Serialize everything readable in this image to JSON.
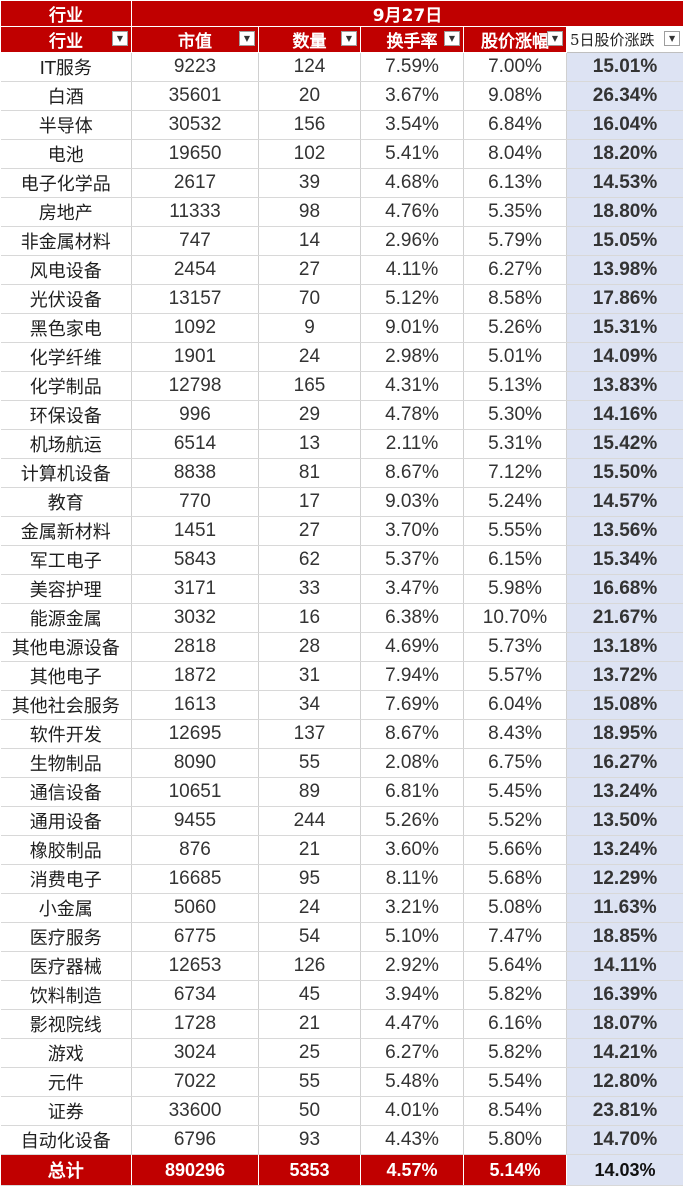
{
  "header": {
    "top_left": "行业",
    "date": "9月27日",
    "columns": [
      "行业",
      "市值",
      "数量",
      "换手率",
      "股价涨幅",
      "5日股价涨跌"
    ],
    "filter_icon": "dropdown-arrow-icon"
  },
  "rows": [
    [
      "IT服务",
      "9223",
      "124",
      "7.59%",
      "7.00%",
      "15.01%"
    ],
    [
      "白酒",
      "35601",
      "20",
      "3.67%",
      "9.08%",
      "26.34%"
    ],
    [
      "半导体",
      "30532",
      "156",
      "3.54%",
      "6.84%",
      "16.04%"
    ],
    [
      "电池",
      "19650",
      "102",
      "5.41%",
      "8.04%",
      "18.20%"
    ],
    [
      "电子化学品",
      "2617",
      "39",
      "4.68%",
      "6.13%",
      "14.53%"
    ],
    [
      "房地产",
      "11333",
      "98",
      "4.76%",
      "5.35%",
      "18.80%"
    ],
    [
      "非金属材料",
      "747",
      "14",
      "2.96%",
      "5.79%",
      "15.05%"
    ],
    [
      "风电设备",
      "2454",
      "27",
      "4.11%",
      "6.27%",
      "13.98%"
    ],
    [
      "光伏设备",
      "13157",
      "70",
      "5.12%",
      "8.58%",
      "17.86%"
    ],
    [
      "黑色家电",
      "1092",
      "9",
      "9.01%",
      "5.26%",
      "15.31%"
    ],
    [
      "化学纤维",
      "1901",
      "24",
      "2.98%",
      "5.01%",
      "14.09%"
    ],
    [
      "化学制品",
      "12798",
      "165",
      "4.31%",
      "5.13%",
      "13.83%"
    ],
    [
      "环保设备",
      "996",
      "29",
      "4.78%",
      "5.30%",
      "14.16%"
    ],
    [
      "机场航运",
      "6514",
      "13",
      "2.11%",
      "5.31%",
      "15.42%"
    ],
    [
      "计算机设备",
      "8838",
      "81",
      "8.67%",
      "7.12%",
      "15.50%"
    ],
    [
      "教育",
      "770",
      "17",
      "9.03%",
      "5.24%",
      "14.57%"
    ],
    [
      "金属新材料",
      "1451",
      "27",
      "3.70%",
      "5.55%",
      "13.56%"
    ],
    [
      "军工电子",
      "5843",
      "62",
      "5.37%",
      "6.15%",
      "15.34%"
    ],
    [
      "美容护理",
      "3171",
      "33",
      "3.47%",
      "5.98%",
      "16.68%"
    ],
    [
      "能源金属",
      "3032",
      "16",
      "6.38%",
      "10.70%",
      "21.67%"
    ],
    [
      "其他电源设备",
      "2818",
      "28",
      "4.69%",
      "5.73%",
      "13.18%"
    ],
    [
      "其他电子",
      "1872",
      "31",
      "7.94%",
      "5.57%",
      "13.72%"
    ],
    [
      "其他社会服务",
      "1613",
      "34",
      "7.69%",
      "6.04%",
      "15.08%"
    ],
    [
      "软件开发",
      "12695",
      "137",
      "8.67%",
      "8.43%",
      "18.95%"
    ],
    [
      "生物制品",
      "8090",
      "55",
      "2.08%",
      "6.75%",
      "16.27%"
    ],
    [
      "通信设备",
      "10651",
      "89",
      "6.81%",
      "5.45%",
      "13.24%"
    ],
    [
      "通用设备",
      "9455",
      "244",
      "5.26%",
      "5.52%",
      "13.50%"
    ],
    [
      "橡胶制品",
      "876",
      "21",
      "3.60%",
      "5.66%",
      "13.24%"
    ],
    [
      "消费电子",
      "16685",
      "95",
      "8.11%",
      "5.68%",
      "12.29%"
    ],
    [
      "小金属",
      "5060",
      "24",
      "3.21%",
      "5.08%",
      "11.63%"
    ],
    [
      "医疗服务",
      "6775",
      "54",
      "5.10%",
      "7.47%",
      "18.85%"
    ],
    [
      "医疗器械",
      "12653",
      "126",
      "2.92%",
      "5.64%",
      "14.11%"
    ],
    [
      "饮料制造",
      "6734",
      "45",
      "3.94%",
      "5.82%",
      "16.39%"
    ],
    [
      "影视院线",
      "1728",
      "21",
      "4.47%",
      "6.16%",
      "18.07%"
    ],
    [
      "游戏",
      "3024",
      "25",
      "6.27%",
      "5.82%",
      "14.21%"
    ],
    [
      "元件",
      "7022",
      "55",
      "5.48%",
      "5.54%",
      "12.80%"
    ],
    [
      "证券",
      "33600",
      "50",
      "4.01%",
      "8.54%",
      "23.81%"
    ],
    [
      "自动化设备",
      "6796",
      "93",
      "4.43%",
      "5.80%",
      "14.70%"
    ]
  ],
  "total": [
    "总计",
    "890296",
    "5353",
    "4.57%",
    "5.14%",
    "14.03%"
  ]
}
